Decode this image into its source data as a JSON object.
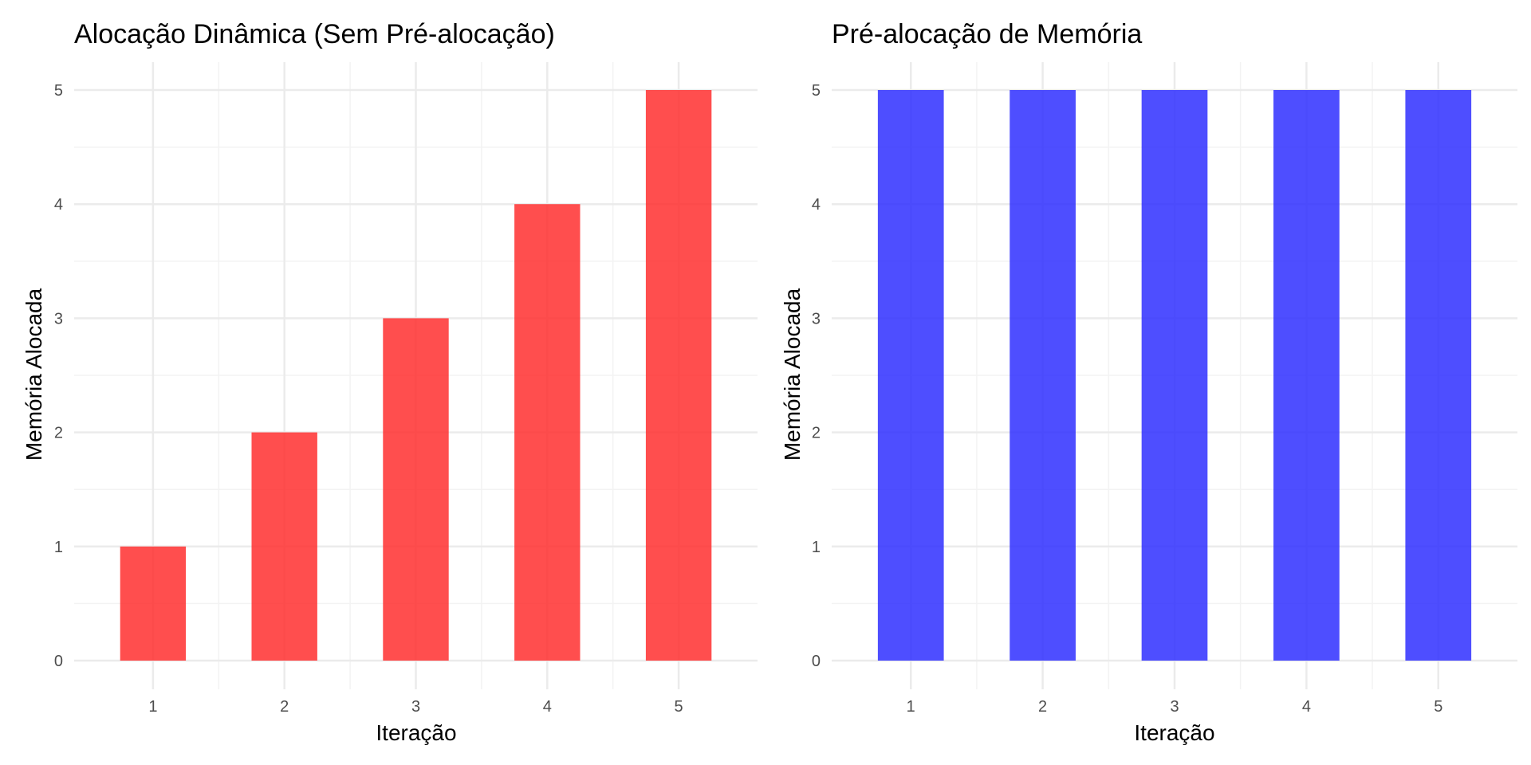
{
  "colors": {
    "background": "#ffffff",
    "grid_major": "#ebebeb",
    "grid_minor": "#f3f3f3",
    "tick_text": "#4d4d4d"
  },
  "chart_data": [
    {
      "type": "bar",
      "title": "Alocação Dinâmica (Sem Pré-alocação)",
      "xlabel": "Iteração",
      "ylabel": "Memória Alocada",
      "categories": [
        "1",
        "2",
        "3",
        "4",
        "5"
      ],
      "values": [
        1,
        2,
        3,
        4,
        5
      ],
      "ylim": [
        0,
        5
      ],
      "yticks": [
        "0",
        "1",
        "2",
        "3",
        "4",
        "5"
      ],
      "bar_color": "#ff2a2a",
      "bar_opacity": 0.83,
      "grid": true,
      "legend": "none"
    },
    {
      "type": "bar",
      "title": "Pré-alocação de Memória",
      "xlabel": "Iteração",
      "ylabel": "Memória Alocada",
      "categories": [
        "1",
        "2",
        "3",
        "4",
        "5"
      ],
      "values": [
        5,
        5,
        5,
        5,
        5
      ],
      "ylim": [
        0,
        5
      ],
      "yticks": [
        "0",
        "1",
        "2",
        "3",
        "4",
        "5"
      ],
      "bar_color": "#2a2aff",
      "bar_opacity": 0.83,
      "grid": true,
      "legend": "none"
    }
  ]
}
